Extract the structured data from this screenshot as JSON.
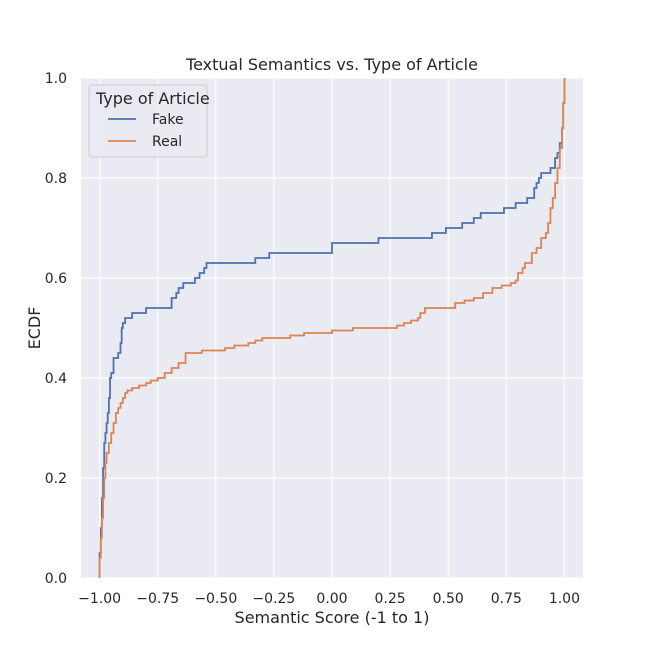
{
  "chart_data": {
    "type": "line",
    "title": "Textual Semantics vs. Type of Article",
    "xlabel": "Semantic Score (-1 to 1)",
    "ylabel": "ECDF",
    "xlim": [
      -1.08,
      1.08
    ],
    "ylim": [
      0,
      1
    ],
    "x_ticks": [
      -1.0,
      -0.75,
      -0.5,
      -0.25,
      0.0,
      0.25,
      0.5,
      0.75,
      1.0
    ],
    "x_tick_labels": [
      "−1.00",
      "−0.75",
      "−0.50",
      "−0.25",
      "0.00",
      "0.25",
      "0.50",
      "0.75",
      "1.00"
    ],
    "y_ticks": [
      0.0,
      0.2,
      0.4,
      0.6,
      0.8,
      1.0
    ],
    "y_tick_labels": [
      "0.0",
      "0.2",
      "0.4",
      "0.6",
      "0.8",
      "1.0"
    ],
    "grid": true,
    "background": "#eaeaf2",
    "legend": {
      "title": "Type of Article",
      "position": "top-left"
    },
    "series": [
      {
        "name": "Fake",
        "color": "#4c72b0",
        "steps": [
          [
            -1.0,
            0.0
          ],
          [
            -1.0,
            0.05
          ],
          [
            -0.995,
            0.1
          ],
          [
            -0.99,
            0.16
          ],
          [
            -0.985,
            0.22
          ],
          [
            -0.98,
            0.27
          ],
          [
            -0.975,
            0.29
          ],
          [
            -0.97,
            0.31
          ],
          [
            -0.965,
            0.33
          ],
          [
            -0.96,
            0.36
          ],
          [
            -0.955,
            0.4
          ],
          [
            -0.95,
            0.41
          ],
          [
            -0.94,
            0.44
          ],
          [
            -0.92,
            0.45
          ],
          [
            -0.91,
            0.47
          ],
          [
            -0.905,
            0.5
          ],
          [
            -0.9,
            0.51
          ],
          [
            -0.89,
            0.52
          ],
          [
            -0.86,
            0.53
          ],
          [
            -0.8,
            0.54
          ],
          [
            -0.69,
            0.56
          ],
          [
            -0.67,
            0.57
          ],
          [
            -0.66,
            0.58
          ],
          [
            -0.64,
            0.59
          ],
          [
            -0.59,
            0.6
          ],
          [
            -0.57,
            0.61
          ],
          [
            -0.55,
            0.62
          ],
          [
            -0.54,
            0.63
          ],
          [
            -0.33,
            0.64
          ],
          [
            -0.27,
            0.65
          ],
          [
            0.0,
            0.67
          ],
          [
            0.2,
            0.68
          ],
          [
            0.43,
            0.69
          ],
          [
            0.49,
            0.7
          ],
          [
            0.56,
            0.71
          ],
          [
            0.61,
            0.72
          ],
          [
            0.64,
            0.73
          ],
          [
            0.74,
            0.74
          ],
          [
            0.79,
            0.75
          ],
          [
            0.84,
            0.76
          ],
          [
            0.87,
            0.78
          ],
          [
            0.88,
            0.79
          ],
          [
            0.89,
            0.8
          ],
          [
            0.9,
            0.81
          ],
          [
            0.94,
            0.82
          ],
          [
            0.96,
            0.84
          ],
          [
            0.97,
            0.85
          ],
          [
            0.98,
            0.87
          ],
          [
            0.99,
            0.9
          ],
          [
            0.995,
            0.95
          ],
          [
            1.0,
            1.0
          ]
        ]
      },
      {
        "name": "Real",
        "color": "#dd8452",
        "steps": [
          [
            -1.0,
            0.0
          ],
          [
            -1.0,
            0.04
          ],
          [
            -0.995,
            0.08
          ],
          [
            -0.99,
            0.12
          ],
          [
            -0.985,
            0.16
          ],
          [
            -0.98,
            0.2
          ],
          [
            -0.975,
            0.23
          ],
          [
            -0.97,
            0.25
          ],
          [
            -0.96,
            0.27
          ],
          [
            -0.95,
            0.29
          ],
          [
            -0.94,
            0.31
          ],
          [
            -0.93,
            0.33
          ],
          [
            -0.92,
            0.34
          ],
          [
            -0.91,
            0.35
          ],
          [
            -0.9,
            0.36
          ],
          [
            -0.89,
            0.37
          ],
          [
            -0.88,
            0.375
          ],
          [
            -0.86,
            0.38
          ],
          [
            -0.83,
            0.385
          ],
          [
            -0.8,
            0.39
          ],
          [
            -0.78,
            0.395
          ],
          [
            -0.75,
            0.4
          ],
          [
            -0.72,
            0.41
          ],
          [
            -0.69,
            0.42
          ],
          [
            -0.66,
            0.43
          ],
          [
            -0.63,
            0.45
          ],
          [
            -0.56,
            0.455
          ],
          [
            -0.46,
            0.46
          ],
          [
            -0.42,
            0.465
          ],
          [
            -0.36,
            0.47
          ],
          [
            -0.33,
            0.475
          ],
          [
            -0.3,
            0.48
          ],
          [
            -0.18,
            0.485
          ],
          [
            -0.12,
            0.49
          ],
          [
            0.0,
            0.495
          ],
          [
            0.09,
            0.5
          ],
          [
            0.28,
            0.505
          ],
          [
            0.31,
            0.51
          ],
          [
            0.34,
            0.515
          ],
          [
            0.37,
            0.52
          ],
          [
            0.38,
            0.53
          ],
          [
            0.4,
            0.54
          ],
          [
            0.53,
            0.55
          ],
          [
            0.57,
            0.555
          ],
          [
            0.61,
            0.56
          ],
          [
            0.65,
            0.57
          ],
          [
            0.69,
            0.58
          ],
          [
            0.73,
            0.585
          ],
          [
            0.77,
            0.59
          ],
          [
            0.79,
            0.595
          ],
          [
            0.8,
            0.61
          ],
          [
            0.82,
            0.62
          ],
          [
            0.83,
            0.63
          ],
          [
            0.86,
            0.65
          ],
          [
            0.88,
            0.66
          ],
          [
            0.9,
            0.68
          ],
          [
            0.92,
            0.69
          ],
          [
            0.93,
            0.71
          ],
          [
            0.94,
            0.74
          ],
          [
            0.95,
            0.76
          ],
          [
            0.96,
            0.79
          ],
          [
            0.97,
            0.82
          ],
          [
            0.98,
            0.86
          ],
          [
            0.99,
            0.9
          ],
          [
            0.995,
            0.95
          ],
          [
            1.0,
            1.0
          ]
        ]
      }
    ]
  }
}
